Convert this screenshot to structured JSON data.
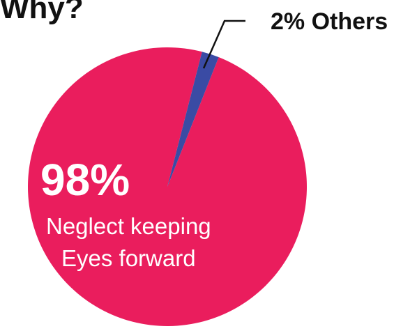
{
  "title": "Why?",
  "chart_data": {
    "type": "pie",
    "slices": [
      {
        "label": "Neglect keeping Eyes forward",
        "label_line1": "Neglect keeping",
        "label_line2": "Eyes forward",
        "percent_text": "98%",
        "value": 98,
        "color": "#EA1D5D"
      },
      {
        "label": "Others",
        "callout_text": "2% Others",
        "value": 2,
        "color": "#3A4BA4"
      }
    ]
  }
}
